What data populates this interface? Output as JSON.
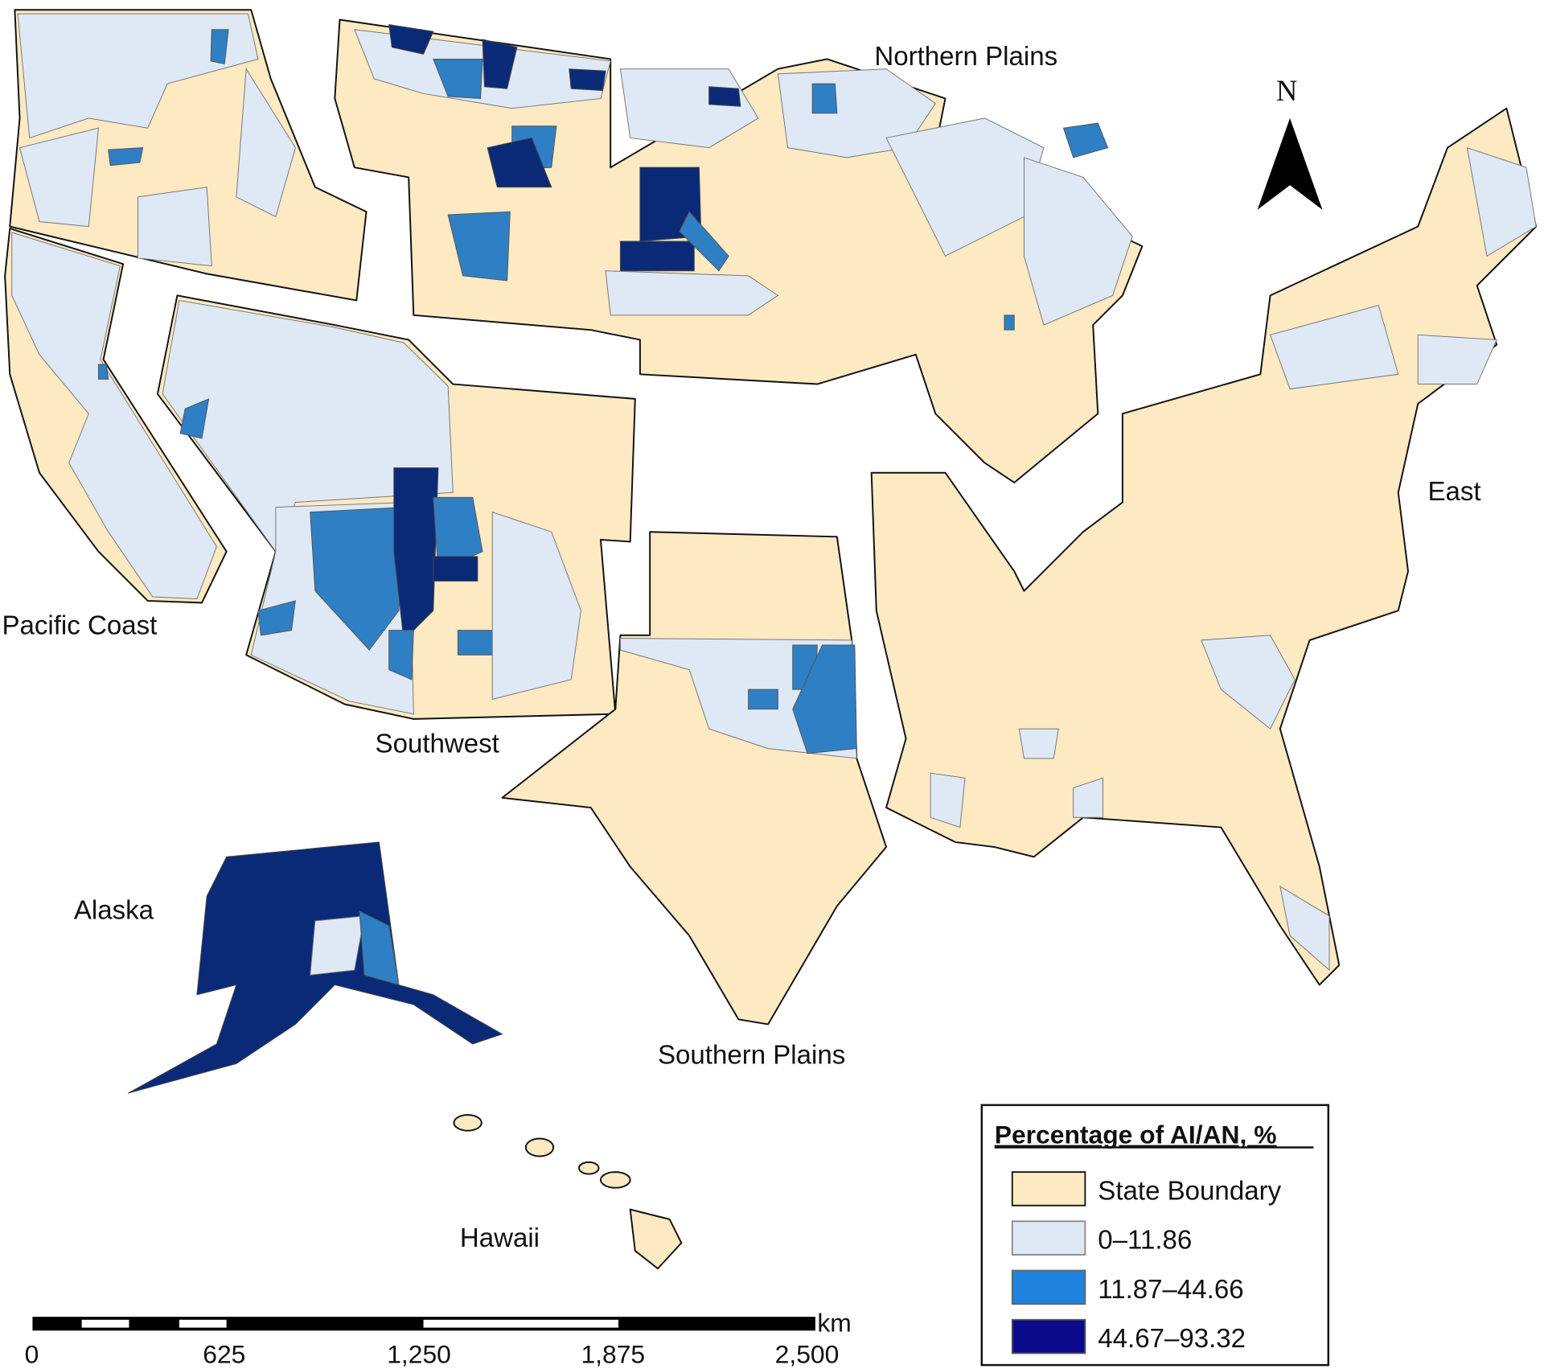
{
  "map": {
    "region_labels": {
      "pacific_coast": "Pacific Coast",
      "northern_plains": "Northern Plains",
      "southwest": "Southwest",
      "southern_plains": "Southern Plains",
      "east": "East",
      "alaska": "Alaska",
      "hawaii": "Hawaii"
    },
    "north_label": "N"
  },
  "legend": {
    "title": "Percentage of AI/AN, %",
    "items": [
      {
        "label": "State Boundary",
        "color": "#fde9c2"
      },
      {
        "label": "0–11.86",
        "color": "#dfe9f5"
      },
      {
        "label": "11.87–44.66",
        "color": "#1f82dd"
      },
      {
        "label": "44.67–93.32",
        "color": "#0a0a8a"
      }
    ]
  },
  "scale_bar": {
    "unit": "km",
    "ticks": [
      "0",
      "625",
      "1,250",
      "1,875",
      "2,500"
    ]
  }
}
